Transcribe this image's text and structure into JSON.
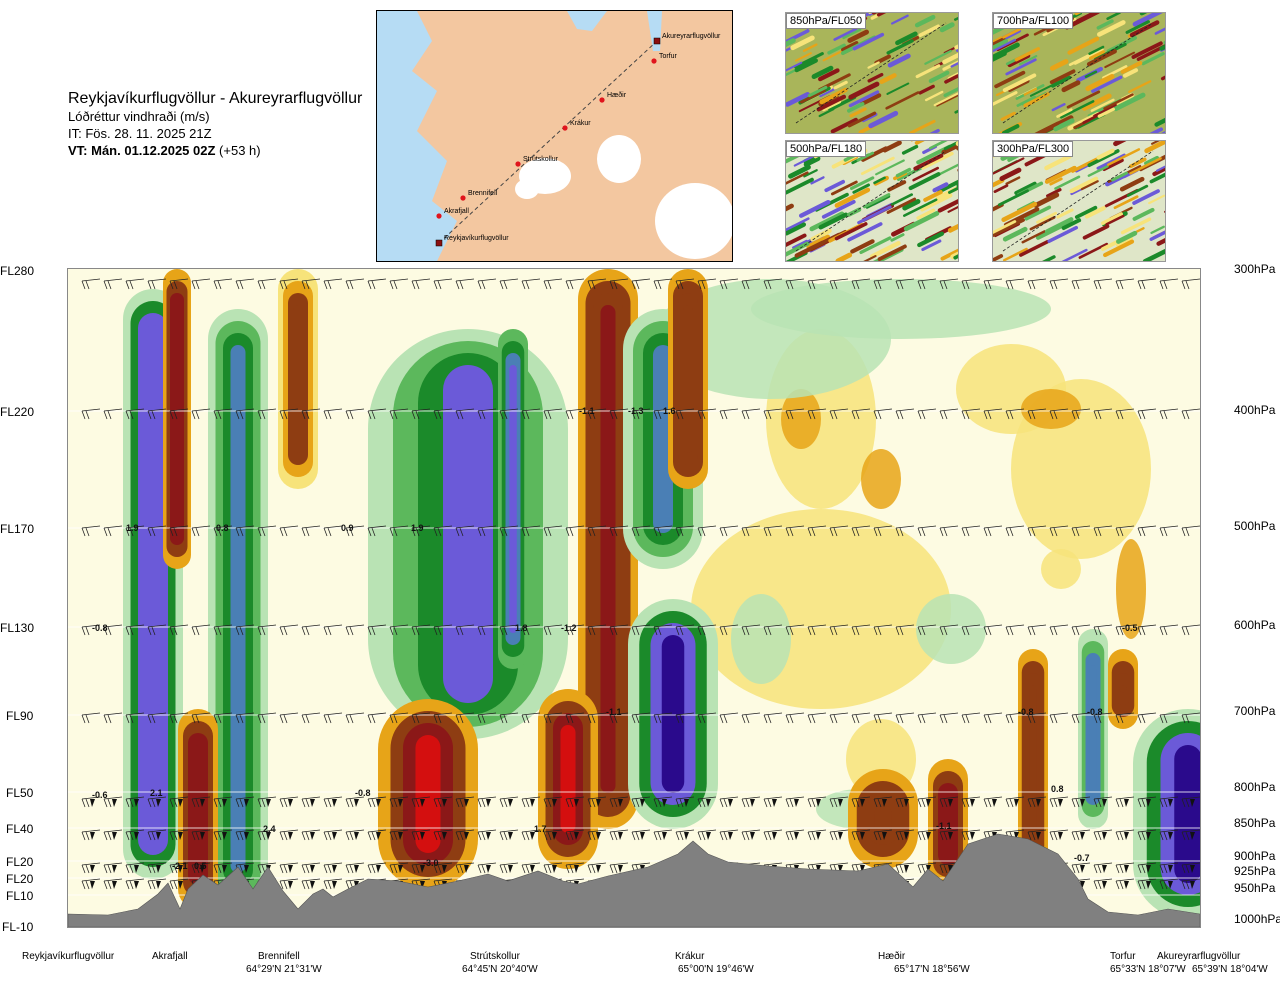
{
  "header": {
    "route": "Reykjavíkurflugvöllur - Akureyrarflugvöllur",
    "quantity": "Lóðréttur vindhraði (m/s)",
    "issue_time": "IT: Fös. 28. 11. 2025 21Z",
    "valid_time_bold": "VT: Mán. 01.12.2025 02Z",
    "valid_time_offset": "(+53 h)"
  },
  "map": {
    "stations": [
      "Akureyrarflugvöllur",
      "Torfur",
      "Hæðir",
      "Krákur",
      "Strútskollur",
      "Brennifell",
      "Akrafjall",
      "Reykjavíkurflugvöllur"
    ],
    "water_color": "#b6dcf4",
    "land_color": "#f3c7a0",
    "ice_color": "#ffffff",
    "route_color": "#444444",
    "station_color": "#e0141c"
  },
  "thumbnails": [
    {
      "label": "850hPa/FL050"
    },
    {
      "label": "700hPa/FL100"
    },
    {
      "label": "500hPa/FL180"
    },
    {
      "label": "300hPa/FL300"
    }
  ],
  "y_axis_left": [
    "FL280",
    "FL220",
    "FL170",
    "FL130",
    "FL90",
    "FL50",
    "FL40",
    "FL20",
    "FL20",
    "FL10",
    "FL-10"
  ],
  "y_axis_right": [
    "300hPa",
    "400hPa",
    "500hPa",
    "600hPa",
    "700hPa",
    "800hPa",
    "850hPa",
    "900hPa",
    "925hPa",
    "950hPa",
    "1000hPa"
  ],
  "x_stations": [
    {
      "name": "Reykjavíkurflugvöllur",
      "coord": ""
    },
    {
      "name": "Akrafjall",
      "coord": ""
    },
    {
      "name": "Brennifell",
      "coord": "64°29'N 21°31'W"
    },
    {
      "name": "Strútskollur",
      "coord": "64°45'N 20°40'W"
    },
    {
      "name": "Krákur",
      "coord": "65°00'N 19°46'W"
    },
    {
      "name": "Hæðir",
      "coord": "65°17'N 18°56'W"
    },
    {
      "name": "Torfur",
      "coord": "65°33'N 18°07'W"
    },
    {
      "name": "Akureyrarflugvöllur",
      "coord": "65°39'N 18°04'W"
    }
  ],
  "contour_labels": [
    "-1.1",
    "-1.3",
    "1.6",
    "1.9",
    "0.8",
    "0.9",
    "1.9",
    "-0.8",
    "1.8",
    "-1.2",
    "-1.1",
    "-0.5",
    "-0.8",
    "-0.8",
    "2.1",
    "-0.8",
    "2.4",
    "1.7",
    "-3.0",
    "-2.1",
    "0.5",
    "-0.6",
    "-1.1",
    "0.8",
    "-0.2",
    "-0.7"
  ],
  "chart_data": {
    "type": "heatmap",
    "title": "Reykjavíkurflugvöllur - Akureyrarflugvöllur",
    "quantity": "Lóðréttur vindhraði (m/s)",
    "x_categories": [
      "Reykjavíkurflugvöllur",
      "Akrafjall",
      "Brennifell",
      "Strútskollur",
      "Krákur",
      "Hæðir",
      "Torfur",
      "Akureyrarflugvöllur"
    ],
    "y_levels_hpa": [
      300,
      400,
      500,
      600,
      700,
      800,
      850,
      900,
      925,
      950,
      1000
    ],
    "y_levels_fl": [
      "FL280",
      "FL220",
      "FL170",
      "FL130",
      "FL90",
      "FL50",
      "FL40",
      "FL20",
      "FL20",
      "FL10",
      "FL-10"
    ],
    "color_scale": {
      "strong_negative": "#2a0a8c",
      "negative": "#6b5ad8",
      "mid_negative": "#4a7fb5",
      "green_dark": "#1b8a2a",
      "green": "#5cb85c",
      "green_light": "#b9e3b4",
      "neutral": "#fdfbe2",
      "yellow": "#f7e37a",
      "orange": "#e7a418",
      "brown": "#8e3d12",
      "dark_red": "#8b1818",
      "red": "#d40f0f"
    },
    "terrain_color": "#808080"
  }
}
